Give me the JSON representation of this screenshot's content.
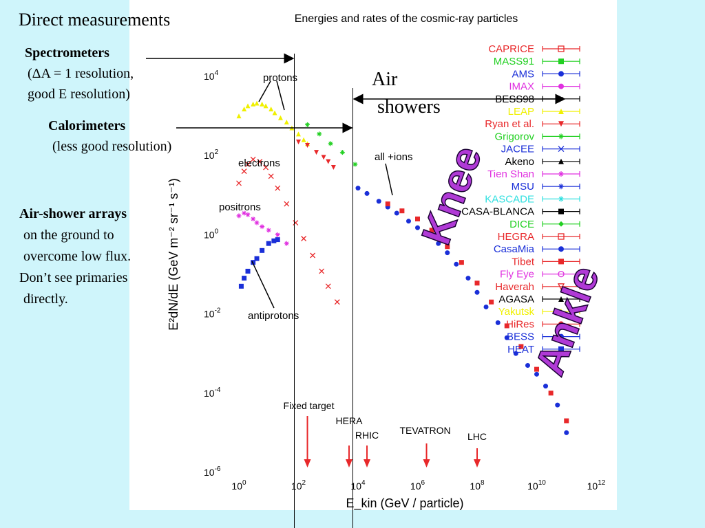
{
  "slide": {
    "title": "Direct measurements",
    "spectrometers": {
      "heading": "Spectrometers",
      "line1": "(ΔA = 1 resolution,",
      "line2": "good E resolution)"
    },
    "calorimeters": {
      "heading": "Calorimeters",
      "line1": "(less good resolution)"
    },
    "airshower_arrays": {
      "heading": "Air-shower arrays",
      "line1": "on the ground to",
      "line2": "overcome low flux.",
      "line3": "Don’t see primaries",
      "line4": "directly."
    },
    "air_showers": {
      "line1": "Air",
      "line2": "showers"
    },
    "knee": "Knee",
    "ankle": "Ankle"
  },
  "chart_data": {
    "type": "scatter",
    "title": "Energies and rates of the cosmic-ray particles",
    "xlabel": "E_kin (GeV / particle)",
    "ylabel": "E²dN/dE (GeV m⁻² sr⁻¹ s⁻¹)",
    "log_x": true,
    "log_y": true,
    "xlim": [
      1,
      1000000000000.0
    ],
    "ylim": [
      1e-06,
      100000.0
    ],
    "x_ticks": [
      "10^0",
      "10^2",
      "10^4",
      "10^6",
      "10^8",
      "10^10",
      "10^12"
    ],
    "y_ticks": [
      "10^-6",
      "10^-4",
      "10^-2",
      "10^0",
      "10^2",
      "10^4"
    ],
    "annotations": [
      "protons",
      "electrons",
      "positrons",
      "antiprotons",
      "all +ions"
    ],
    "accelerators": [
      {
        "label": "Fixed target",
        "x": 200
      },
      {
        "label": "HERA",
        "x": 5000
      },
      {
        "label": "RHIC",
        "x": 20000
      },
      {
        "label": "TEVATRON",
        "x": 2000000
      },
      {
        "label": "LHC",
        "x": 100000000
      }
    ],
    "legend": [
      {
        "name": "CAPRICE",
        "color": "#e8282a",
        "marker": "square-open"
      },
      {
        "name": "MASS91",
        "color": "#22d022",
        "marker": "square"
      },
      {
        "name": "AMS",
        "color": "#1a2fd8",
        "marker": "circle"
      },
      {
        "name": "IMAX",
        "color": "#e030e0",
        "marker": "circle"
      },
      {
        "name": "BESS98",
        "color": "#000000",
        "marker": "arrow"
      },
      {
        "name": "LEAP",
        "color": "#f0f000",
        "marker": "triangle"
      },
      {
        "name": "Ryan et al.",
        "color": "#e8282a",
        "marker": "triangle-down"
      },
      {
        "name": "Grigorov",
        "color": "#22d022",
        "marker": "star"
      },
      {
        "name": "JACEE",
        "color": "#1a2fd8",
        "marker": "x"
      },
      {
        "name": "Akeno",
        "color": "#000000",
        "marker": "triangle"
      },
      {
        "name": "Tien Shan",
        "color": "#e030e0",
        "marker": "star"
      },
      {
        "name": "MSU",
        "color": "#1a2fd8",
        "marker": "star"
      },
      {
        "name": "KASCADE",
        "color": "#30e0e0",
        "marker": "star"
      },
      {
        "name": "CASA-BLANCA",
        "color": "#000000",
        "marker": "square"
      },
      {
        "name": "DICE",
        "color": "#22d022",
        "marker": "diamond"
      },
      {
        "name": "HEGRA",
        "color": "#e8282a",
        "marker": "square-open"
      },
      {
        "name": "CasaMia",
        "color": "#1a2fd8",
        "marker": "circle"
      },
      {
        "name": "Tibet",
        "color": "#e8282a",
        "marker": "square"
      },
      {
        "name": "Fly Eye",
        "color": "#e030e0",
        "marker": "circle-open"
      },
      {
        "name": "Haverah",
        "color": "#e8282a",
        "marker": "triangle-down-open"
      },
      {
        "name": "AGASA",
        "color": "#000000",
        "marker": "triangle"
      },
      {
        "name": "Yakutsk",
        "color": "#f0f000",
        "marker": "cross"
      },
      {
        "name": "HiRes",
        "color": "#e8282a",
        "marker": "circle"
      },
      {
        "name": "BESS",
        "color": "#1a2fd8",
        "marker": "circle"
      },
      {
        "name": "HEAT",
        "color": "#1a2fd8",
        "marker": "square"
      }
    ],
    "series": [
      {
        "name": "protons",
        "color": "#f0f000",
        "marker": "triangle",
        "x": [
          1,
          1.5,
          2,
          3,
          4,
          6,
          8,
          12,
          16,
          25,
          40,
          60,
          100,
          150,
          200
        ],
        "y": [
          1000,
          1500,
          1800,
          2000,
          2100,
          2000,
          1800,
          1500,
          1200,
          900,
          700,
          500,
          350,
          250,
          200
        ]
      },
      {
        "name": "protons (Ryan)",
        "color": "#e8282a",
        "marker": "triangle-down",
        "x": [
          100,
          200,
          400,
          700,
          1000,
          1500
        ],
        "y": [
          220,
          180,
          120,
          90,
          70,
          50
        ]
      },
      {
        "name": "protons (Grigorov)",
        "color": "#22d022",
        "marker": "star",
        "x": [
          200,
          500,
          1200,
          3000,
          8000
        ],
        "y": [
          600,
          350,
          200,
          120,
          60
        ]
      },
      {
        "name": "electrons",
        "color": "#e8282a",
        "marker": "x",
        "x": [
          1,
          1.5,
          2,
          3,
          5,
          8,
          12,
          20,
          40,
          80,
          150,
          300,
          600,
          1000,
          2000
        ],
        "y": [
          20,
          40,
          60,
          80,
          70,
          50,
          30,
          15,
          6,
          2,
          0.8,
          0.3,
          0.12,
          0.05,
          0.02
        ]
      },
      {
        "name": "positrons",
        "color": "#e030e0",
        "marker": "star",
        "x": [
          1,
          1.5,
          2,
          3,
          4,
          6,
          10,
          20,
          40
        ],
        "y": [
          3,
          3.5,
          3.2,
          2.5,
          2,
          1.6,
          1.3,
          1,
          0.6
        ]
      },
      {
        "name": "antiprotons",
        "color": "#1a2fd8",
        "marker": "square",
        "x": [
          1.2,
          1.5,
          2,
          3,
          4,
          6,
          10,
          15,
          20
        ],
        "y": [
          0.05,
          0.08,
          0.12,
          0.2,
          0.25,
          0.4,
          0.6,
          0.7,
          0.75
        ]
      },
      {
        "name": "all +ions",
        "color": "#1a2fd8",
        "marker": "circle",
        "x": [
          10000,
          20000,
          50000,
          100000,
          200000,
          500000,
          1000000,
          2000000,
          5000000,
          10000000,
          20000000,
          50000000,
          100000000,
          200000000,
          500000000,
          1000000000,
          2000000000,
          5000000000,
          10000000000,
          20000000000,
          50000000000,
          100000000000
        ],
        "y": [
          15,
          11,
          7,
          5,
          3.5,
          2.2,
          1.5,
          1,
          0.6,
          0.35,
          0.18,
          0.08,
          0.035,
          0.015,
          0.006,
          0.0025,
          0.001,
          0.0005,
          0.0003,
          0.00015,
          5e-05,
          1e-05
        ]
      },
      {
        "name": "all +ions (red)",
        "color": "#e8282a",
        "marker": "square",
        "x": [
          100000,
          300000,
          1000000,
          3000000,
          10000000,
          30000000,
          100000000,
          300000000,
          1000000000,
          3000000000,
          10000000000,
          30000000000,
          100000000000
        ],
        "y": [
          6,
          4,
          2.5,
          1.3,
          0.5,
          0.2,
          0.06,
          0.02,
          0.005,
          0.0015,
          0.0004,
          0.0001,
          2e-05
        ]
      }
    ]
  }
}
